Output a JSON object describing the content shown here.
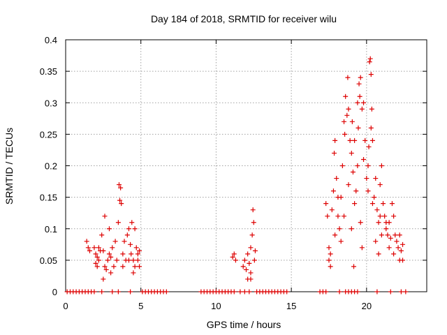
{
  "chart_data": {
    "type": "scatter",
    "title": "Day 184 of 2018, SRMTID for receiver wilu",
    "xlabel": "GPS time / hours",
    "ylabel": "SRMTID / TECUs",
    "xlim": [
      0,
      24
    ],
    "ylim": [
      0,
      0.4
    ],
    "xticks": [
      0,
      5,
      10,
      15,
      20
    ],
    "yticks": [
      0,
      0.05,
      0.1,
      0.15,
      0.2,
      0.25,
      0.3,
      0.35,
      0.4
    ],
    "xtick_labels": [
      "0",
      "5",
      "10",
      "15",
      "20"
    ],
    "ytick_labels": [
      "0",
      "0.05",
      "0.1",
      "0.15",
      "0.2",
      "0.25",
      "0.3",
      "0.35",
      "0.4"
    ],
    "grid": true,
    "marker": "+",
    "color": "#dd0000",
    "series": [
      {
        "name": "SRMTID",
        "points": [
          [
            0.1,
            0
          ],
          [
            0.3,
            0
          ],
          [
            0.5,
            0
          ],
          [
            0.7,
            0
          ],
          [
            0.9,
            0
          ],
          [
            1.1,
            0
          ],
          [
            1.3,
            0
          ],
          [
            1.5,
            0
          ],
          [
            1.7,
            0
          ],
          [
            1.9,
            0
          ],
          [
            2.4,
            0
          ],
          [
            3.1,
            0
          ],
          [
            3.5,
            0
          ],
          [
            4.3,
            0
          ],
          [
            5.1,
            0
          ],
          [
            5.3,
            0
          ],
          [
            5.5,
            0
          ],
          [
            5.7,
            0
          ],
          [
            5.9,
            0
          ],
          [
            6.1,
            0
          ],
          [
            6.3,
            0
          ],
          [
            6.5,
            0
          ],
          [
            6.7,
            0
          ],
          [
            9.0,
            0
          ],
          [
            9.2,
            0
          ],
          [
            9.4,
            0
          ],
          [
            9.6,
            0
          ],
          [
            9.8,
            0
          ],
          [
            10.0,
            0
          ],
          [
            10.2,
            0
          ],
          [
            10.4,
            0
          ],
          [
            10.6,
            0
          ],
          [
            10.8,
            0
          ],
          [
            11.0,
            0
          ],
          [
            11.2,
            0
          ],
          [
            11.6,
            0
          ],
          [
            11.9,
            0
          ],
          [
            12.2,
            0
          ],
          [
            12.7,
            0
          ],
          [
            12.9,
            0
          ],
          [
            13.1,
            0
          ],
          [
            13.3,
            0
          ],
          [
            13.5,
            0
          ],
          [
            13.7,
            0
          ],
          [
            13.9,
            0
          ],
          [
            14.1,
            0
          ],
          [
            14.3,
            0
          ],
          [
            14.5,
            0
          ],
          [
            14.7,
            0
          ],
          [
            16.9,
            0
          ],
          [
            17.1,
            0
          ],
          [
            17.3,
            0
          ],
          [
            18.2,
            0
          ],
          [
            18.6,
            0
          ],
          [
            18.8,
            0
          ],
          [
            19.0,
            0
          ],
          [
            19.2,
            0
          ],
          [
            19.4,
            0
          ],
          [
            20.7,
            0
          ],
          [
            21.6,
            0
          ],
          [
            22.3,
            0
          ],
          [
            22.6,
            0
          ],
          [
            1.4,
            0.08
          ],
          [
            1.5,
            0.07
          ],
          [
            1.6,
            0.065
          ],
          [
            1.9,
            0.07
          ],
          [
            2.0,
            0.06
          ],
          [
            2.1,
            0.055
          ],
          [
            2.2,
            0.05
          ],
          [
            2.3,
            0.065
          ],
          [
            2.0,
            0.045
          ],
          [
            2.1,
            0.04
          ],
          [
            2.2,
            0.07
          ],
          [
            2.4,
            0.09
          ],
          [
            2.5,
            0.065
          ],
          [
            2.6,
            0.04
          ],
          [
            2.6,
            0.12
          ],
          [
            2.7,
            0.035
          ],
          [
            2.8,
            0.05
          ],
          [
            2.9,
            0.06
          ],
          [
            3.0,
            0.055
          ],
          [
            2.9,
            0.1
          ],
          [
            3.1,
            0.07
          ],
          [
            3.2,
            0.04
          ],
          [
            3.3,
            0.08
          ],
          [
            3.4,
            0.05
          ],
          [
            3.5,
            0.11
          ],
          [
            3.55,
            0.17
          ],
          [
            3.6,
            0.145
          ],
          [
            3.65,
            0.165
          ],
          [
            3.7,
            0.14
          ],
          [
            3.8,
            0.06
          ],
          [
            3.9,
            0.08
          ],
          [
            4.0,
            0.05
          ],
          [
            4.1,
            0.09
          ],
          [
            4.2,
            0.1
          ],
          [
            4.3,
            0.075
          ],
          [
            4.35,
            0.06
          ],
          [
            4.4,
            0.11
          ],
          [
            4.5,
            0.05
          ],
          [
            4.6,
            0.1
          ],
          [
            4.7,
            0.07
          ],
          [
            4.8,
            0.06
          ],
          [
            4.9,
            0.065
          ],
          [
            2.5,
            0.02
          ],
          [
            3.0,
            0.03
          ],
          [
            4.5,
            0.03
          ],
          [
            4.6,
            0.04
          ],
          [
            4.8,
            0.05
          ],
          [
            4.9,
            0.04
          ],
          [
            4.2,
            0.05
          ],
          [
            3.8,
            0.04
          ],
          [
            11.1,
            0.055
          ],
          [
            11.2,
            0.06
          ],
          [
            11.3,
            0.05
          ],
          [
            11.8,
            0.04
          ],
          [
            11.9,
            0.05
          ],
          [
            12.0,
            0.035
          ],
          [
            12.1,
            0.06
          ],
          [
            12.2,
            0.045
          ],
          [
            12.3,
            0.03
          ],
          [
            12.3,
            0.07
          ],
          [
            12.4,
            0.09
          ],
          [
            12.45,
            0.13
          ],
          [
            12.5,
            0.11
          ],
          [
            12.55,
            0.05
          ],
          [
            12.6,
            0.065
          ],
          [
            12.1,
            0.02
          ],
          [
            12.3,
            0.02
          ],
          [
            17.3,
            0.14
          ],
          [
            17.4,
            0.12
          ],
          [
            17.5,
            0.05
          ],
          [
            17.6,
            0.06
          ],
          [
            17.7,
            0.13
          ],
          [
            17.8,
            0.16
          ],
          [
            17.85,
            0.22
          ],
          [
            17.9,
            0.24
          ],
          [
            18.0,
            0.18
          ],
          [
            18.1,
            0.12
          ],
          [
            18.2,
            0.1
          ],
          [
            18.3,
            0.15
          ],
          [
            18.4,
            0.2
          ],
          [
            18.5,
            0.27
          ],
          [
            18.55,
            0.25
          ],
          [
            18.6,
            0.31
          ],
          [
            18.7,
            0.28
          ],
          [
            18.75,
            0.34
          ],
          [
            18.8,
            0.29
          ],
          [
            18.9,
            0.24
          ],
          [
            19.0,
            0.22
          ],
          [
            19.05,
            0.27
          ],
          [
            19.1,
            0.19
          ],
          [
            19.15,
            0.04
          ],
          [
            19.2,
            0.14
          ],
          [
            19.3,
            0.16
          ],
          [
            19.4,
            0.3
          ],
          [
            19.45,
            0.26
          ],
          [
            19.5,
            0.33
          ],
          [
            19.55,
            0.31
          ],
          [
            19.6,
            0.34
          ],
          [
            19.7,
            0.29
          ],
          [
            19.8,
            0.3
          ],
          [
            19.9,
            0.24
          ],
          [
            20.0,
            0.18
          ],
          [
            20.1,
            0.2
          ],
          [
            20.15,
            0.23
          ],
          [
            20.2,
            0.365
          ],
          [
            20.25,
            0.37
          ],
          [
            20.3,
            0.345
          ],
          [
            20.35,
            0.29
          ],
          [
            20.4,
            0.24
          ],
          [
            20.5,
            0.15
          ],
          [
            20.6,
            0.18
          ],
          [
            20.7,
            0.13
          ],
          [
            20.8,
            0.11
          ],
          [
            20.9,
            0.17
          ],
          [
            21.0,
            0.2
          ],
          [
            21.1,
            0.14
          ],
          [
            21.2,
            0.12
          ],
          [
            21.3,
            0.1
          ],
          [
            21.4,
            0.09
          ],
          [
            21.5,
            0.11
          ],
          [
            21.6,
            0.085
          ],
          [
            21.7,
            0.14
          ],
          [
            21.8,
            0.12
          ],
          [
            21.9,
            0.09
          ],
          [
            22.0,
            0.08
          ],
          [
            22.1,
            0.07
          ],
          [
            22.2,
            0.09
          ],
          [
            22.3,
            0.065
          ],
          [
            22.4,
            0.075
          ],
          [
            17.6,
            0.04
          ],
          [
            18.3,
            0.08
          ],
          [
            19.0,
            0.1
          ],
          [
            19.6,
            0.11
          ],
          [
            20.4,
            0.14
          ],
          [
            21.0,
            0.09
          ],
          [
            21.5,
            0.07
          ],
          [
            22.2,
            0.05
          ],
          [
            18.8,
            0.17
          ],
          [
            19.4,
            0.2
          ],
          [
            20.1,
            0.16
          ],
          [
            20.8,
            0.06
          ],
          [
            17.9,
            0.09
          ],
          [
            18.5,
            0.12
          ],
          [
            19.8,
            0.21
          ],
          [
            20.6,
            0.08
          ],
          [
            21.8,
            0.06
          ],
          [
            22.4,
            0.05
          ],
          [
            17.5,
            0.07
          ],
          [
            19.2,
            0.24
          ],
          [
            20.3,
            0.26
          ],
          [
            18.1,
            0.15
          ],
          [
            21.3,
            0.11
          ],
          [
            19.7,
            0.07
          ],
          [
            20.9,
            0.12
          ]
        ]
      }
    ]
  }
}
